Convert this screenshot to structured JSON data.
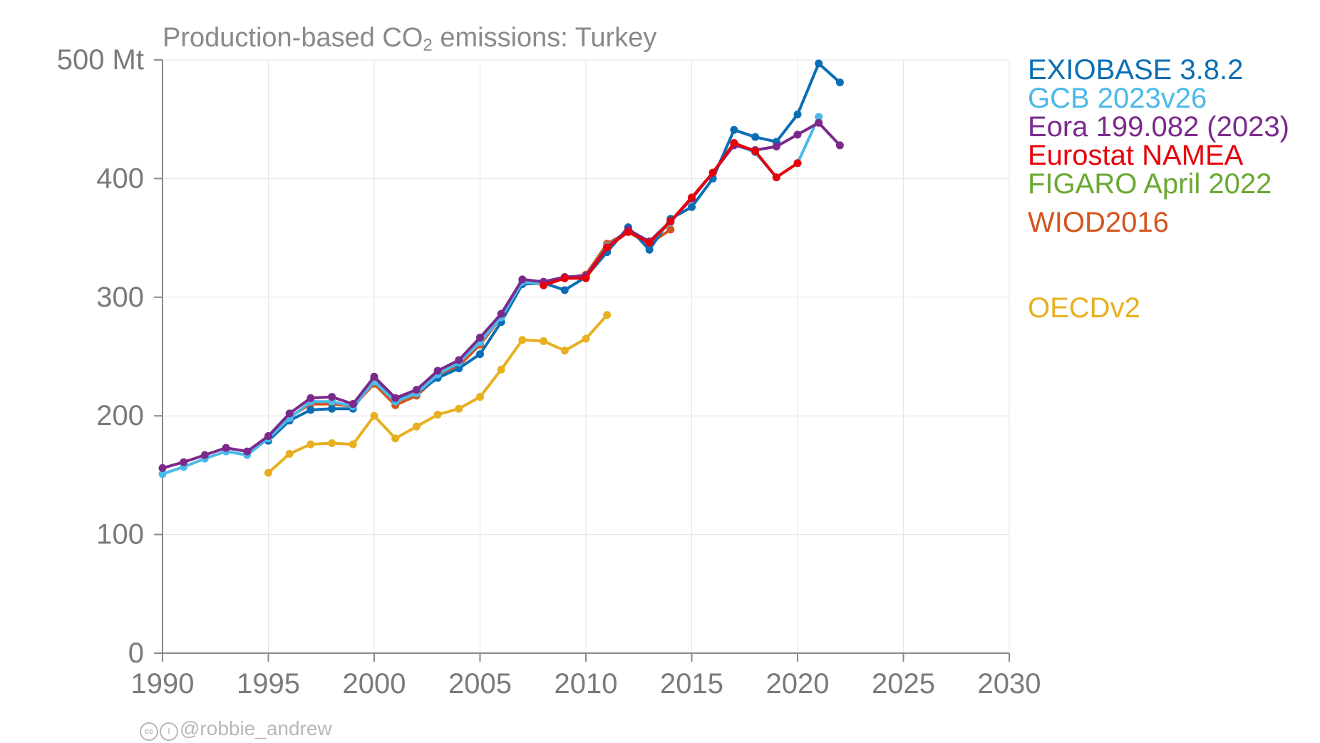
{
  "chart_data": {
    "type": "line",
    "title_prefix": "Production-based CO",
    "title_sub": "2",
    "title_suffix": " emissions: Turkey",
    "xlabel": "",
    "ylabel": "",
    "xlim": [
      1990,
      2030
    ],
    "ylim": [
      0,
      500
    ],
    "x_ticks": [
      1990,
      1995,
      2000,
      2005,
      2010,
      2015,
      2020,
      2025,
      2030
    ],
    "y_ticks": [
      0,
      100,
      200,
      300,
      400,
      500
    ],
    "y_tick_labels": [
      "0",
      "100",
      "200",
      "300",
      "400",
      "500 Mt"
    ],
    "grid": true,
    "legend_position": "right",
    "series": [
      {
        "name": "EXIOBASE 3.8.2",
        "color": "#0a6eb4",
        "x": [
          1995,
          1996,
          1997,
          1998,
          1999,
          2000,
          2001,
          2002,
          2003,
          2004,
          2005,
          2006,
          2007,
          2008,
          2009,
          2010,
          2011,
          2012,
          2013,
          2014,
          2015,
          2016,
          2017,
          2018,
          2019,
          2020,
          2021,
          2022
        ],
        "y": [
          179,
          196,
          205,
          206,
          206,
          232,
          213,
          219,
          232,
          240,
          252,
          279,
          311,
          312,
          306,
          317,
          338,
          359,
          340,
          366,
          376,
          400,
          441,
          435,
          431,
          454,
          497,
          481
        ]
      },
      {
        "name": "GCB 2023v26",
        "color": "#4bb9e8",
        "x": [
          1990,
          1991,
          1992,
          1993,
          1994,
          1995,
          1996,
          1997,
          1998,
          1999,
          2000,
          2001,
          2002,
          2003,
          2004,
          2005,
          2006,
          2007,
          2008,
          2009,
          2010,
          2011,
          2012,
          2013,
          2014,
          2015,
          2016,
          2017,
          2018,
          2019,
          2020,
          2021
        ],
        "y": [
          151,
          157,
          164,
          170,
          167,
          181,
          198,
          212,
          212,
          208,
          229,
          212,
          219,
          235,
          245,
          262,
          283,
          313,
          311,
          316,
          317,
          343,
          356,
          346,
          363,
          384,
          405,
          429,
          422,
          401,
          413,
          452
        ]
      },
      {
        "name": "Eora 199.082 (2023)",
        "color": "#7b2a8c",
        "x": [
          1990,
          1991,
          1992,
          1993,
          1994,
          1995,
          1996,
          1997,
          1998,
          1999,
          2000,
          2001,
          2002,
          2003,
          2004,
          2005,
          2006,
          2007,
          2008,
          2009,
          2010,
          2011,
          2012,
          2013,
          2014,
          2015,
          2016,
          2017,
          2018,
          2019,
          2020,
          2021,
          2022
        ],
        "y": [
          156,
          161,
          167,
          173,
          170,
          183,
          202,
          215,
          216,
          210,
          233,
          215,
          222,
          238,
          247,
          266,
          286,
          315,
          313,
          317,
          318,
          342,
          357,
          347,
          364,
          383,
          405,
          428,
          424,
          427,
          437,
          447,
          428
        ]
      },
      {
        "name": "Eurostat NAMEA",
        "color": "#e8000b",
        "x": [
          2008,
          2009,
          2010,
          2011,
          2012,
          2013,
          2014,
          2015,
          2016,
          2017,
          2018,
          2019,
          2020
        ],
        "y": [
          310,
          316,
          316,
          342,
          355,
          346,
          364,
          384,
          405,
          430,
          423,
          401,
          413
        ]
      },
      {
        "name": "FIGARO April 2022",
        "color": "#6aa832",
        "x": [],
        "y": []
      },
      {
        "name": "WIOD2016",
        "color": "#d4541c",
        "x": [
          1995,
          1996,
          1997,
          1998,
          1999,
          2000,
          2001,
          2002,
          2003,
          2004,
          2005,
          2006,
          2007,
          2008,
          2009,
          2010,
          2011,
          2012,
          2013,
          2014
        ],
        "y": [
          181,
          199,
          210,
          210,
          208,
          227,
          209,
          217,
          233,
          242,
          260,
          283,
          312,
          311,
          316,
          319,
          345,
          355,
          345,
          357
        ]
      },
      {
        "name": "OECDv2",
        "color": "#e8b020",
        "x": [
          1995,
          1996,
          1997,
          1998,
          1999,
          2000,
          2001,
          2002,
          2003,
          2004,
          2005,
          2006,
          2007,
          2008,
          2009,
          2010,
          2011
        ],
        "y": [
          152,
          168,
          176,
          177,
          176,
          200,
          181,
          191,
          201,
          206,
          216,
          239,
          264,
          263,
          255,
          265,
          285
        ]
      }
    ]
  },
  "legend": {
    "items": [
      "EXIOBASE 3.8.2",
      "GCB 2023v26",
      "Eora 199.082 (2023)",
      "Eurostat NAMEA",
      "FIGARO April 2022",
      "WIOD2016",
      "OECDv2"
    ],
    "colors": [
      "#0a6eb4",
      "#4bb9e8",
      "#7b2a8c",
      "#e8000b",
      "#6aa832",
      "#d4541c",
      "#e8b020"
    ]
  },
  "credit": {
    "icons": [
      "cc-icon",
      "by-icon"
    ],
    "text": "@robbie_andrew"
  }
}
